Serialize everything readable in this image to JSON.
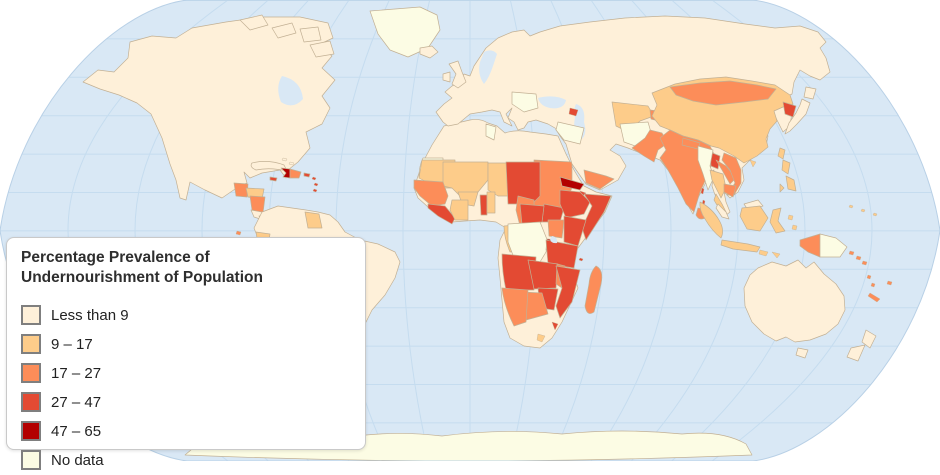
{
  "legend": {
    "title": "Percentage Prevalence of Undernourishment of Population",
    "items": [
      {
        "label": "Less than 9",
        "color": "#FEF0D9"
      },
      {
        "label": "9 – 17",
        "color": "#FDCC8A"
      },
      {
        "label": "17 – 27",
        "color": "#FC8D59"
      },
      {
        "label": "27 – 47",
        "color": "#E34A33"
      },
      {
        "label": "47 – 65",
        "color": "#B30000"
      },
      {
        "label": "No data",
        "color": "#FCFCE4"
      }
    ]
  },
  "map": {
    "projection": "world",
    "colors": {
      "ocean": "#D9E8F5",
      "graticule": "#C5DCEF",
      "land_border": "#C2B094",
      "map_edge": "#B8D0E6",
      "background": "#FFFFFF"
    }
  },
  "regions": {
    "north-america": 0,
    "arctic-islands": 0,
    "greenland": 5,
    "guatemala": 2,
    "honduras": 1,
    "nicaragua": 2,
    "costa-rica": 0,
    "panama": 1,
    "cuba": 0,
    "haiti": 4,
    "dominican-republic": 2,
    "jamaica": 3,
    "puerto-rico": 3,
    "lesser-antilles": 3,
    "bahamas": 0,
    "south-america": 0,
    "guyana": 1,
    "ecuador": 1,
    "galapagos": 2,
    "bolivia": 1,
    "africa": 0,
    "western-sahara": 5,
    "tunisia": 5,
    "mauritania": 1,
    "mali": 1,
    "burkina-faso": 1,
    "niger": 1,
    "senegal-guinea": 2,
    "sierra-leone-liberia": 3,
    "ivory-coast": 1,
    "togo": 3,
    "benin": 1,
    "chad": 3,
    "sudan": 2,
    "south-sudan": 3,
    "eritrea": 4,
    "djibouti": 3,
    "ethiopia": 3,
    "somalia": 3,
    "cameroon": 2,
    "central-african-republic": 3,
    "gabon-congo": 1,
    "drc": 5,
    "uganda": 2,
    "kenya": 3,
    "rwanda-burundi": 4,
    "tanzania": 3,
    "angola": 3,
    "zambia": 3,
    "malawi": 2,
    "mozambique": 3,
    "zimbabwe": 3,
    "botswana": 2,
    "namibia": 2,
    "lesotho": 1,
    "swaziland": 3,
    "madagascar": 2,
    "comoros": 3,
    "eurasia": 0,
    "united-kingdom": 0,
    "ireland": 0,
    "iceland": 0,
    "southeast-europe": 5,
    "syria-iraq": 5,
    "armenia": 3,
    "yemen": 2,
    "turkmenistan-uzbekistan": 1,
    "tajikistan": 2,
    "afghanistan": 5,
    "pakistan": 2,
    "india": 2,
    "nepal": 2,
    "bangladesh": 3,
    "sri-lanka": 2,
    "andaman-islands": 3,
    "china": 1,
    "mongolia": 2,
    "north-korea": 3,
    "japan": 0,
    "taiwan": 1,
    "hainan": 1,
    "philippines": 1,
    "myanmar": 5,
    "thailand": 1,
    "laos": 2,
    "vietnam": 2,
    "cambodia": 2,
    "malaysia": 0,
    "sumatra": 1,
    "java": 1,
    "borneo": 1,
    "sulawesi": 1,
    "lesser-sunda": 1,
    "maluku": 1,
    "new-guinea-west": 2,
    "new-guinea-east": 5,
    "solomon-islands": 2,
    "vanuatu-fiji": 2,
    "new-caledonia": 2,
    "micronesia": 1,
    "australia": 0,
    "tasmania": 0,
    "new-zealand": 0,
    "antarctica": 5
  }
}
